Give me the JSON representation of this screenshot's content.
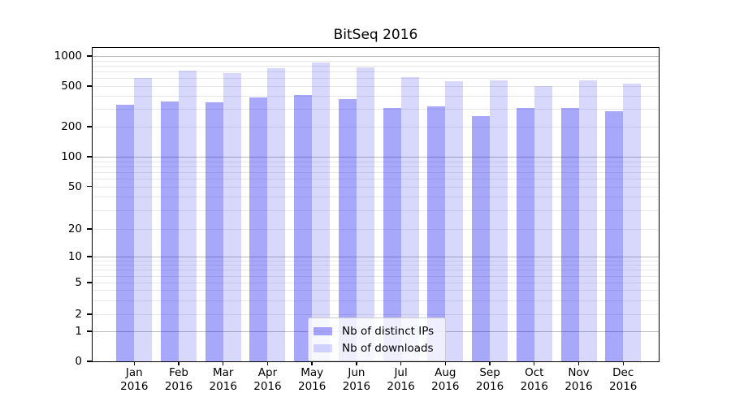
{
  "title": "BitSeq 2016",
  "colors": {
    "ips_bar": "rgba(13,13,242,0.36)",
    "downloads_bar": "rgba(13,13,242,0.16)",
    "grid_major": "#b9b9b9",
    "grid_minor": "#e8e8e8",
    "spine": "#000000",
    "legend_border": "#cccccc"
  },
  "chart_data": {
    "type": "bar",
    "title": "BitSeq 2016",
    "yscale": "symlog",
    "grid": "both",
    "legend_position": "lower center",
    "categories": [
      "Jan",
      "Feb",
      "Mar",
      "Apr",
      "May",
      "Jun",
      "Jul",
      "Aug",
      "Sep",
      "Oct",
      "Nov",
      "Dec"
    ],
    "year_label": "2016",
    "y_ticks": [
      0,
      1,
      2,
      5,
      10,
      20,
      50,
      100,
      200,
      500,
      1000
    ],
    "ylim": [
      0,
      1200
    ],
    "series": [
      {
        "name": "Nb of distinct IPs",
        "color_key": "ips_bar",
        "values": [
          330,
          355,
          345,
          385,
          405,
          375,
          305,
          315,
          255,
          305,
          305,
          285
        ]
      },
      {
        "name": "Nb of downloads",
        "color_key": "downloads_bar",
        "values": [
          600,
          720,
          680,
          755,
          855,
          765,
          620,
          560,
          570,
          500,
          565,
          525
        ]
      }
    ]
  }
}
